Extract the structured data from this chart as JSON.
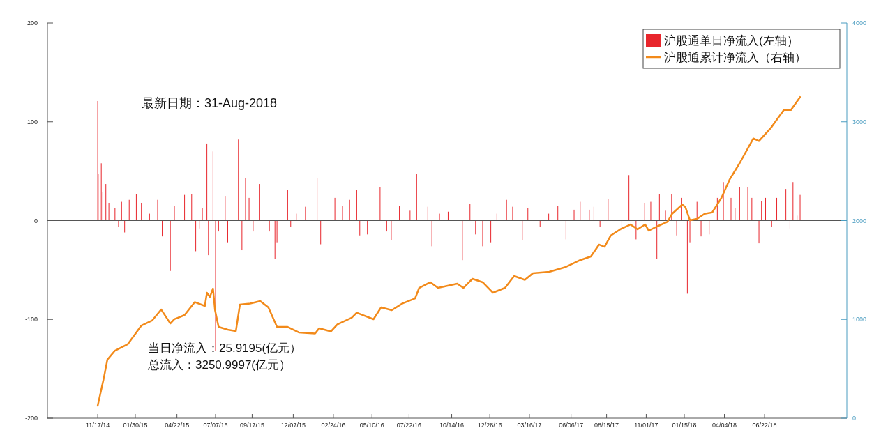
{
  "chart_data": {
    "type": "bar",
    "xlim": [
      "2014-08-10",
      "2018-12-01"
    ],
    "xticks": [
      {
        "value": "2014-11-17",
        "label": "11/17/14"
      },
      {
        "value": "2015-01-30",
        "label": "01/30/15"
      },
      {
        "value": "2015-04-22",
        "label": "04/22/15"
      },
      {
        "value": "2015-07-07",
        "label": "07/07/15"
      },
      {
        "value": "2015-09-17",
        "label": "09/17/15"
      },
      {
        "value": "2015-12-07",
        "label": "12/07/15"
      },
      {
        "value": "2016-02-24",
        "label": "02/24/16"
      },
      {
        "value": "2016-05-10",
        "label": "05/10/16"
      },
      {
        "value": "2016-07-22",
        "label": "07/22/16"
      },
      {
        "value": "2016-10-14",
        "label": "10/14/16"
      },
      {
        "value": "2016-12-28",
        "label": "12/28/16"
      },
      {
        "value": "2017-03-16",
        "label": "03/16/17"
      },
      {
        "value": "2017-06-06",
        "label": "06/06/17"
      },
      {
        "value": "2017-08-15",
        "label": "08/15/17"
      },
      {
        "value": "2017-11-01",
        "label": "11/01/17"
      },
      {
        "value": "2018-01-15",
        "label": "01/15/18"
      },
      {
        "value": "2018-04-04",
        "label": "04/04/18"
      },
      {
        "value": "2018-06-22",
        "label": "06/22/18"
      }
    ],
    "ylim": [
      -200,
      200
    ],
    "yticks": [
      -200,
      -100,
      0,
      100,
      200
    ],
    "y2lim": [
      0,
      4000
    ],
    "y2ticks": [
      0,
      1000,
      2000,
      3000,
      4000
    ],
    "legend": "top right",
    "ref_lines": [
      {
        "axis": "y",
        "value": 0,
        "color": "#555555"
      }
    ],
    "annotations": [
      "最新日期：31-Aug-2018",
      "当日净流入：25.9195(亿元）",
      "总流入：3250.9997(亿元）"
    ],
    "series": [
      {
        "name": "沪股通单日净流入(左轴）",
        "color": "#e8262c",
        "x": [
          "2014-11-17",
          "2014-11-18",
          "2014-11-24",
          "2014-11-27",
          "2014-12-03",
          "2014-12-09",
          "2014-12-21",
          "2014-12-28",
          "2015-01-03",
          "2015-01-09",
          "2015-01-18",
          "2015-02-01",
          "2015-02-11",
          "2015-02-27",
          "2015-03-15",
          "2015-03-24",
          "2015-04-09",
          "2015-04-17",
          "2015-05-07",
          "2015-05-21",
          "2015-05-29",
          "2015-06-05",
          "2015-06-11",
          "2015-06-20",
          "2015-06-23",
          "2015-07-02",
          "2015-07-07",
          "2015-07-13",
          "2015-07-26",
          "2015-07-31",
          "2015-08-21",
          "2015-08-22",
          "2015-08-28",
          "2015-09-04",
          "2015-09-11",
          "2015-09-19",
          "2015-10-02",
          "2015-10-21",
          "2015-11-01",
          "2015-11-05",
          "2015-11-26",
          "2015-12-02",
          "2015-12-13",
          "2015-12-31",
          "2016-01-23",
          "2016-01-30",
          "2016-02-27",
          "2016-03-13",
          "2016-03-27",
          "2016-04-10",
          "2016-04-16",
          "2016-05-01",
          "2016-05-26",
          "2016-06-08",
          "2016-06-17",
          "2016-07-03",
          "2016-07-24",
          "2016-08-06",
          "2016-08-28",
          "2016-09-05",
          "2016-09-20",
          "2016-10-07",
          "2016-11-04",
          "2016-11-19",
          "2016-11-30",
          "2016-12-14",
          "2016-12-30",
          "2017-01-11",
          "2017-01-30",
          "2017-02-11",
          "2017-03-02",
          "2017-03-13",
          "2017-04-06",
          "2017-04-23",
          "2017-05-11",
          "2017-05-27",
          "2017-06-12",
          "2017-06-24",
          "2017-07-12",
          "2017-07-21",
          "2017-08-02",
          "2017-08-18",
          "2017-09-14",
          "2017-09-28",
          "2017-10-12",
          "2017-10-29",
          "2017-11-10",
          "2017-11-22",
          "2017-11-27",
          "2017-12-09",
          "2017-12-21",
          "2017-12-31",
          "2018-01-09",
          "2018-01-21",
          "2018-01-26",
          "2018-02-09",
          "2018-02-17",
          "2018-03-05",
          "2018-03-21",
          "2018-04-02",
          "2018-04-17",
          "2018-04-25",
          "2018-05-04",
          "2018-05-20",
          "2018-05-28",
          "2018-06-11",
          "2018-06-16",
          "2018-06-24",
          "2018-07-06",
          "2018-07-16",
          "2018-08-03",
          "2018-08-11",
          "2018-08-17",
          "2018-08-25",
          "2018-08-31"
        ],
        "values": [
          121,
          47,
          58,
          29,
          37,
          18,
          13,
          -6,
          19,
          -12,
          21,
          27,
          18,
          7,
          21,
          -16,
          -51,
          15,
          26,
          27,
          -31,
          -8,
          13,
          78,
          -35,
          70,
          -132,
          -11,
          25,
          -22,
          82,
          50,
          -30,
          43,
          23,
          -11,
          37,
          -11,
          -39,
          -22,
          31,
          -6,
          7,
          14,
          43,
          -24,
          23,
          15,
          21,
          31,
          -15,
          -14,
          34,
          -11,
          -20,
          15,
          10,
          47,
          14,
          -26,
          7,
          9,
          -40,
          17,
          -14,
          -26,
          -22,
          7,
          21,
          14,
          -20,
          13,
          -6,
          7,
          15,
          -19,
          11,
          19,
          11,
          14,
          -6,
          22,
          -11,
          46,
          -19,
          18,
          19,
          -39,
          27,
          10,
          27,
          -15,
          23,
          -74,
          -22,
          19,
          -16,
          -14,
          23,
          39,
          23,
          13,
          34,
          34,
          23,
          -23,
          20,
          23,
          -6,
          23,
          32,
          -8,
          39,
          5,
          26
        ]
      },
      {
        "type": "line",
        "axis": "y2",
        "name": "沪股通累计净流入（右轴）",
        "color": "#f28a1a",
        "x": [
          "2014-11-17",
          "2014-11-29",
          "2014-12-06",
          "2014-12-21",
          "2015-01-15",
          "2015-02-11",
          "2015-03-04",
          "2015-03-22",
          "2015-04-09",
          "2015-04-17",
          "2015-05-07",
          "2015-05-27",
          "2015-06-16",
          "2015-06-20",
          "2015-06-26",
          "2015-07-02",
          "2015-07-06",
          "2015-07-13",
          "2015-07-31",
          "2015-08-16",
          "2015-08-24",
          "2015-09-13",
          "2015-10-03",
          "2015-10-19",
          "2015-11-05",
          "2015-11-26",
          "2015-12-18",
          "2016-01-19",
          "2016-01-27",
          "2016-02-19",
          "2016-03-03",
          "2016-03-31",
          "2016-04-10",
          "2016-05-13",
          "2016-05-28",
          "2016-06-18",
          "2016-07-09",
          "2016-08-03",
          "2016-08-11",
          "2016-09-02",
          "2016-09-17",
          "2016-10-25",
          "2016-11-06",
          "2016-11-24",
          "2016-12-14",
          "2017-01-03",
          "2017-01-27",
          "2017-02-14",
          "2017-03-07",
          "2017-03-23",
          "2017-04-24",
          "2017-05-27",
          "2017-06-24",
          "2017-07-15",
          "2017-07-31",
          "2017-08-11",
          "2017-08-23",
          "2017-09-11",
          "2017-10-01",
          "2017-10-15",
          "2017-10-30",
          "2017-11-06",
          "2017-11-22",
          "2017-12-13",
          "2017-12-22",
          "2018-01-11",
          "2018-01-17",
          "2018-01-26",
          "2018-02-09",
          "2018-02-24",
          "2018-03-11",
          "2018-03-29",
          "2018-04-14",
          "2018-05-04",
          "2018-05-31",
          "2018-06-11",
          "2018-07-04",
          "2018-07-30",
          "2018-08-13",
          "2018-08-31"
        ],
        "values": [
          127,
          405,
          593,
          684,
          748,
          938,
          988,
          1100,
          959,
          1002,
          1044,
          1175,
          1136,
          1270,
          1228,
          1312,
          1093,
          924,
          896,
          882,
          1150,
          1160,
          1185,
          1122,
          924,
          924,
          868,
          857,
          910,
          878,
          949,
          1016,
          1068,
          1002,
          1122,
          1093,
          1161,
          1213,
          1319,
          1376,
          1319,
          1362,
          1319,
          1411,
          1376,
          1270,
          1319,
          1439,
          1400,
          1467,
          1481,
          1531,
          1600,
          1637,
          1757,
          1735,
          1848,
          1912,
          1961,
          1912,
          1961,
          1898,
          1940,
          1989,
          2069,
          2162,
          2138,
          2004,
          2018,
          2069,
          2083,
          2229,
          2413,
          2582,
          2831,
          2805,
          2935,
          3120,
          3120,
          3251
        ]
      }
    ]
  }
}
